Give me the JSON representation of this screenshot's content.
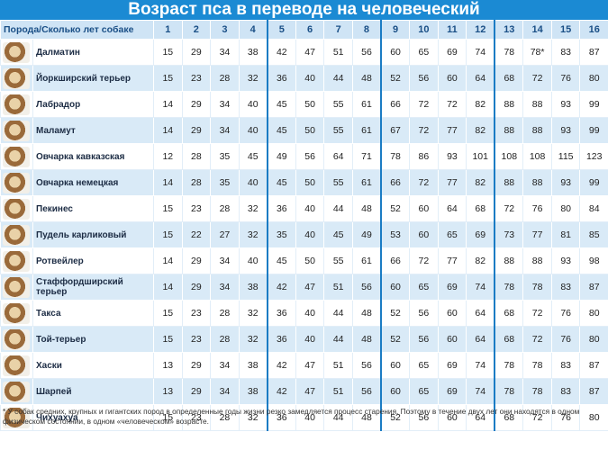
{
  "title": "Возраст пса в переводе на человеческий",
  "table": {
    "header": [
      "Порода/Сколько лет собаке",
      1,
      2,
      3,
      4,
      5,
      6,
      7,
      8,
      9,
      10,
      11,
      12,
      13,
      14,
      15,
      16
    ],
    "rows": [
      {
        "breed": "Далматин",
        "ages": [
          15,
          29,
          34,
          38,
          42,
          47,
          51,
          56,
          60,
          65,
          69,
          74,
          78,
          "78*",
          83,
          87
        ]
      },
      {
        "breed": "Йоркширский терьер",
        "ages": [
          15,
          23,
          28,
          32,
          36,
          40,
          44,
          48,
          52,
          56,
          60,
          64,
          68,
          72,
          76,
          80
        ]
      },
      {
        "breed": "Лабрадор",
        "ages": [
          14,
          29,
          34,
          40,
          45,
          50,
          55,
          61,
          66,
          72,
          72,
          82,
          88,
          88,
          93,
          99
        ]
      },
      {
        "breed": "Маламут",
        "ages": [
          14,
          29,
          34,
          40,
          45,
          50,
          55,
          61,
          67,
          72,
          77,
          82,
          88,
          88,
          93,
          99
        ]
      },
      {
        "breed": "Овчарка кавказская",
        "ages": [
          12,
          28,
          35,
          45,
          49,
          56,
          64,
          71,
          78,
          86,
          93,
          101,
          108,
          108,
          115,
          123
        ]
      },
      {
        "breed": "Овчарка немецкая",
        "ages": [
          14,
          28,
          35,
          40,
          45,
          50,
          55,
          61,
          66,
          72,
          77,
          82,
          88,
          88,
          93,
          99
        ]
      },
      {
        "breed": "Пекинес",
        "ages": [
          15,
          23,
          28,
          32,
          36,
          40,
          44,
          48,
          52,
          60,
          64,
          68,
          72,
          76,
          80,
          84
        ]
      },
      {
        "breed": "Пудель карликовый",
        "ages": [
          15,
          22,
          27,
          32,
          35,
          40,
          45,
          49,
          53,
          60,
          65,
          69,
          73,
          77,
          81,
          85
        ]
      },
      {
        "breed": "Ротвейлер",
        "ages": [
          14,
          29,
          34,
          40,
          45,
          50,
          55,
          61,
          66,
          72,
          77,
          82,
          88,
          88,
          93,
          98
        ]
      },
      {
        "breed": "Стаффордширский терьер",
        "ages": [
          14,
          29,
          34,
          38,
          42,
          47,
          51,
          56,
          60,
          65,
          69,
          74,
          78,
          78,
          83,
          87
        ]
      },
      {
        "breed": "Такса",
        "ages": [
          15,
          23,
          28,
          32,
          36,
          40,
          44,
          48,
          52,
          56,
          60,
          64,
          68,
          72,
          76,
          80
        ]
      },
      {
        "breed": "Той-терьер",
        "ages": [
          15,
          23,
          28,
          32,
          36,
          40,
          44,
          48,
          52,
          56,
          60,
          64,
          68,
          72,
          76,
          80
        ]
      },
      {
        "breed": "Хаски",
        "ages": [
          13,
          29,
          34,
          38,
          42,
          47,
          51,
          56,
          60,
          65,
          69,
          74,
          78,
          78,
          83,
          87
        ]
      },
      {
        "breed": "Шарпей",
        "ages": [
          13,
          29,
          34,
          38,
          42,
          47,
          51,
          56,
          60,
          65,
          69,
          74,
          78,
          78,
          83,
          87
        ]
      },
      {
        "breed": "Чихуахуа",
        "ages": [
          15,
          23,
          28,
          32,
          36,
          40,
          44,
          48,
          52,
          56,
          60,
          64,
          68,
          72,
          76,
          80
        ]
      }
    ]
  },
  "footnote": "* У собак средних, крупных и гигантских пород в определенные годы жизни резко замедляется процесс старения. Поэтому в течение двух лет они находятся в одном физическом состоянии, в одном «человеческом» возрасте."
}
